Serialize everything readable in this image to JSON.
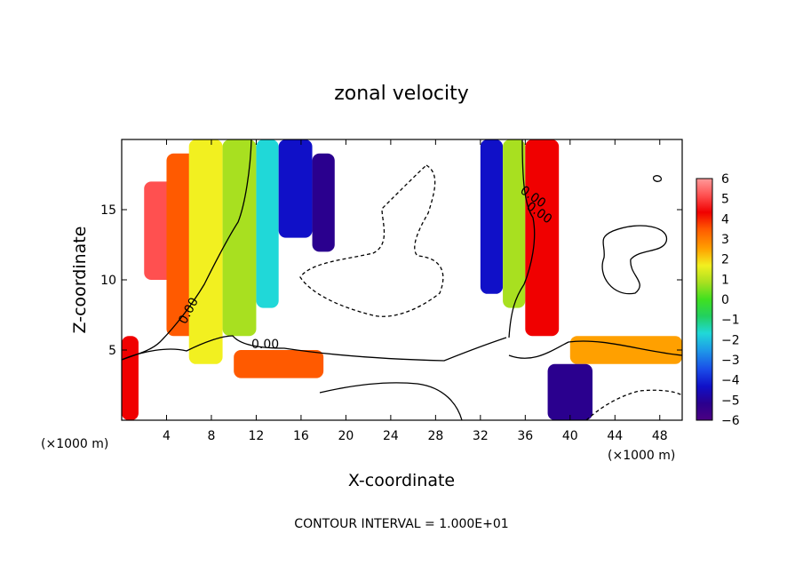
{
  "chart_data": {
    "type": "heatmap",
    "title": "zonal velocity",
    "xlabel": "X-coordinate",
    "ylabel": "Z-coordinate",
    "x_unit_label": "(×1000 m)",
    "y_unit_label": "(×1000 m)",
    "xlim": [
      0,
      50
    ],
    "ylim": [
      0,
      20
    ],
    "x_ticks": [
      4,
      8,
      12,
      16,
      20,
      24,
      28,
      32,
      36,
      40,
      44,
      48
    ],
    "y_ticks": [
      5,
      10,
      15
    ],
    "colorbar": {
      "min": -6,
      "max": 6,
      "ticks": [
        6,
        5,
        4,
        3,
        2,
        1,
        0,
        -1,
        -2,
        -3,
        -4,
        -5,
        -6
      ],
      "colors": [
        "#4b0082",
        "#2a008e",
        "#1010c8",
        "#1a4ce8",
        "#1e9ae8",
        "#20d8d8",
        "#22d060",
        "#40e020",
        "#a8e020",
        "#f2f020",
        "#ffa000",
        "#ff5a00",
        "#f00000",
        "#ff5050",
        "#ff9a9a"
      ]
    },
    "contour_labels": [
      "0.00",
      "0.00",
      "0.00",
      "0.00"
    ],
    "contour_interval_text": "CONTOUR INTERVAL = 1.000E+01",
    "field_bands": [
      {
        "x": [
          0,
          1.5
        ],
        "z": [
          0,
          6
        ],
        "value": 4.5
      },
      {
        "x": [
          2,
          5
        ],
        "z": [
          10,
          17
        ],
        "value": 5.5
      },
      {
        "x": [
          4,
          7
        ],
        "z": [
          6,
          19
        ],
        "value": 3.5
      },
      {
        "x": [
          6,
          9
        ],
        "z": [
          4,
          20
        ],
        "value": 1.5
      },
      {
        "x": [
          9,
          12
        ],
        "z": [
          6,
          20
        ],
        "value": 0.5
      },
      {
        "x": [
          12,
          14
        ],
        "z": [
          8,
          20
        ],
        "value": -1.5
      },
      {
        "x": [
          14,
          17
        ],
        "z": [
          13,
          20
        ],
        "value": -4.0
      },
      {
        "x": [
          17,
          19
        ],
        "z": [
          12,
          19
        ],
        "value": -5.5
      },
      {
        "x": [
          10,
          18
        ],
        "z": [
          3,
          5
        ],
        "value": 3.5
      },
      {
        "x": [
          32,
          34
        ],
        "z": [
          9,
          20
        ],
        "value": -4.5
      },
      {
        "x": [
          34,
          36
        ],
        "z": [
          8,
          20
        ],
        "value": 0.5
      },
      {
        "x": [
          36,
          39
        ],
        "z": [
          6,
          20
        ],
        "value": 4.0
      },
      {
        "x": [
          40,
          50
        ],
        "z": [
          4,
          6
        ],
        "value": 2.5
      },
      {
        "x": [
          38,
          42
        ],
        "z": [
          0,
          4
        ],
        "value": -5.0
      }
    ]
  },
  "labels": {
    "title": "zonal velocity",
    "xlabel": "X-coordinate",
    "ylabel": "Z-coordinate",
    "x_unit_left": "(×1000 m)",
    "x_unit_right": "(×1000 m)",
    "contour_interval": "CONTOUR INTERVAL = 1.000E+01"
  }
}
